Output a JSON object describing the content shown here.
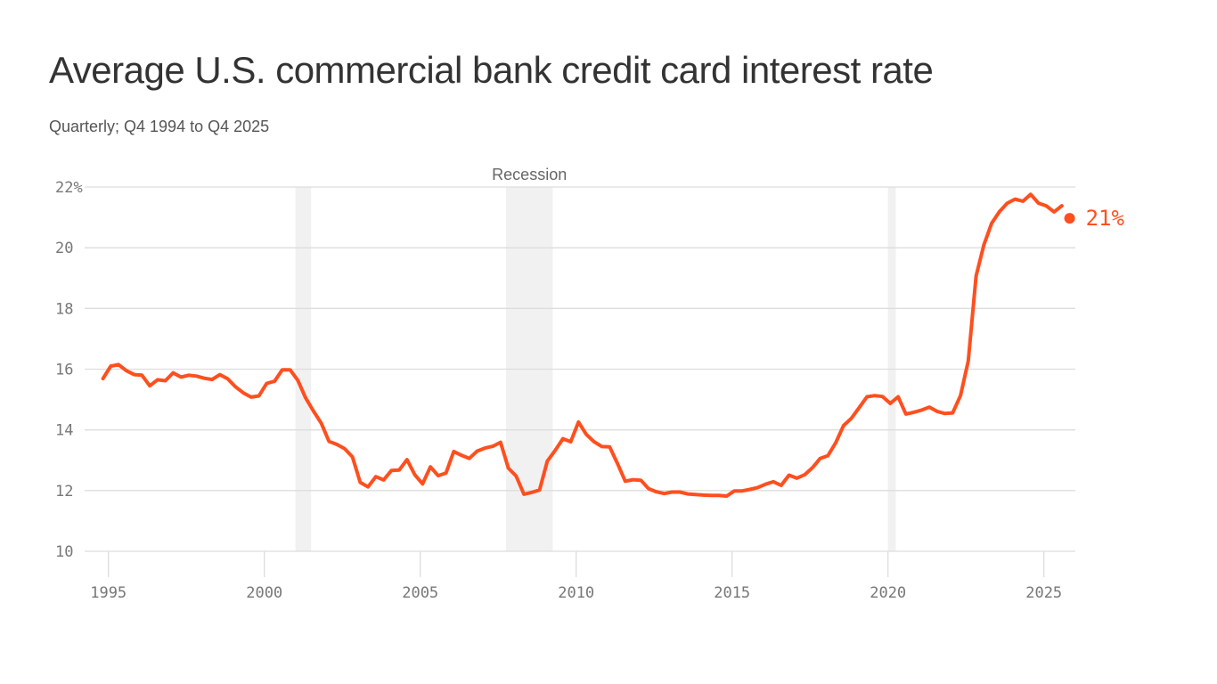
{
  "title": "Average U.S. commercial bank credit card interest rate",
  "subtitle": "Quarterly; Q4 1994 to Q4 2025",
  "chart_data": {
    "type": "line",
    "title": "Average U.S. commercial bank credit card interest rate",
    "subtitle": "Quarterly; Q4 1994 to Q4 2025",
    "xlabel": "",
    "ylabel": "",
    "ylim": [
      10,
      22
    ],
    "xlim": [
      1994.5,
      2026.1
    ],
    "y_ticks": [
      "22%",
      "20",
      "18",
      "16",
      "14",
      "12",
      "10"
    ],
    "y_tick_values": [
      22,
      20,
      18,
      16,
      14,
      12,
      10
    ],
    "x_ticks": [
      "1995",
      "2000",
      "2005",
      "2010",
      "2015",
      "2020",
      "2025"
    ],
    "grid": "horizontal",
    "line_color": "#ff4f1f",
    "recession_label": "Recession",
    "recessions": [
      [
        2001.0,
        2001.5
      ],
      [
        2007.75,
        2009.25
      ],
      [
        2020.0,
        2020.25
      ]
    ],
    "end_label": "21%",
    "series": [
      {
        "x": [
          "1994 Q4",
          "1995 Q1",
          "1995 Q2",
          "1995 Q3",
          "1995 Q4",
          "1996 Q1",
          "1996 Q2",
          "1996 Q3",
          "1996 Q4",
          "1997 Q1",
          "1997 Q2",
          "1997 Q3",
          "1997 Q4",
          "1998 Q1",
          "1998 Q2",
          "1998 Q3",
          "1998 Q4",
          "1999 Q1",
          "1999 Q2",
          "1999 Q3",
          "1999 Q4",
          "2000 Q1",
          "2000 Q2",
          "2000 Q3",
          "2000 Q4",
          "2001 Q1",
          "2001 Q2",
          "2001 Q3",
          "2001 Q4",
          "2002 Q1",
          "2002 Q2",
          "2002 Q3",
          "2002 Q4",
          "2003 Q1",
          "2003 Q2",
          "2003 Q3",
          "2003 Q4",
          "2004 Q1",
          "2004 Q2",
          "2004 Q3",
          "2004 Q4",
          "2005 Q1",
          "2005 Q2",
          "2005 Q3",
          "2005 Q4",
          "2006 Q1",
          "2006 Q2",
          "2006 Q3",
          "2006 Q4",
          "2007 Q1",
          "2007 Q2",
          "2007 Q3",
          "2007 Q4",
          "2008 Q1",
          "2008 Q2",
          "2008 Q3",
          "2008 Q4",
          "2009 Q1",
          "2009 Q2",
          "2009 Q3",
          "2009 Q4",
          "2010 Q1",
          "2010 Q2",
          "2010 Q3",
          "2010 Q4",
          "2011 Q1",
          "2011 Q2",
          "2011 Q3",
          "2011 Q4",
          "2012 Q1",
          "2012 Q2",
          "2012 Q3",
          "2012 Q4",
          "2013 Q1",
          "2013 Q2",
          "2013 Q3",
          "2013 Q4",
          "2014 Q1",
          "2014 Q2",
          "2014 Q3",
          "2014 Q4",
          "2015 Q1",
          "2015 Q2",
          "2015 Q3",
          "2015 Q4",
          "2016 Q1",
          "2016 Q2",
          "2016 Q3",
          "2016 Q4",
          "2017 Q1",
          "2017 Q2",
          "2017 Q3",
          "2017 Q4",
          "2018 Q1",
          "2018 Q2",
          "2018 Q3",
          "2018 Q4",
          "2019 Q1",
          "2019 Q2",
          "2019 Q3",
          "2019 Q4",
          "2020 Q1",
          "2020 Q2",
          "2020 Q3",
          "2020 Q4",
          "2021 Q1",
          "2021 Q2",
          "2021 Q3",
          "2021 Q4",
          "2022 Q1",
          "2022 Q2",
          "2022 Q3",
          "2022 Q4",
          "2023 Q1",
          "2023 Q2",
          "2023 Q3",
          "2023 Q4",
          "2024 Q1",
          "2024 Q2",
          "2024 Q3",
          "2024 Q4",
          "2025 Q1",
          "2025 Q2",
          "2025 Q3",
          "2025 Q4"
        ],
        "values": [
          15.69,
          16.1,
          16.15,
          15.95,
          15.82,
          15.8,
          15.45,
          15.65,
          15.62,
          15.88,
          15.74,
          15.8,
          15.77,
          15.7,
          15.66,
          15.82,
          15.68,
          15.42,
          15.22,
          15.08,
          15.12,
          15.53,
          15.6,
          15.98,
          15.98,
          15.63,
          15.05,
          14.62,
          14.22,
          13.62,
          13.52,
          13.38,
          13.11,
          12.27,
          12.12,
          12.46,
          12.35,
          12.66,
          12.68,
          13.02,
          12.52,
          12.22,
          12.78,
          12.49,
          12.58,
          13.29,
          13.16,
          13.06,
          13.3,
          13.4,
          13.46,
          13.59,
          12.74,
          12.48,
          11.88,
          11.94,
          12.02,
          12.97,
          13.32,
          13.71,
          13.61,
          14.26,
          13.85,
          13.61,
          13.45,
          13.44,
          12.89,
          12.31,
          12.36,
          12.34,
          12.06,
          11.96,
          11.9,
          11.95,
          11.95,
          11.89,
          11.87,
          11.85,
          11.84,
          11.84,
          11.82,
          11.99,
          11.99,
          12.04,
          12.1,
          12.21,
          12.29,
          12.17,
          12.51,
          12.41,
          12.52,
          12.75,
          13.06,
          13.15,
          13.58,
          14.14,
          14.38,
          14.73,
          15.09,
          15.13,
          15.1,
          14.87,
          15.09,
          14.52,
          14.58,
          14.65,
          14.75,
          14.61,
          14.54,
          14.56,
          15.13,
          16.27,
          19.07,
          20.09,
          20.81,
          21.19,
          21.47,
          21.6,
          21.53,
          21.76,
          21.47,
          21.38,
          21.18,
          21.38,
          20.97
        ]
      }
    ]
  }
}
